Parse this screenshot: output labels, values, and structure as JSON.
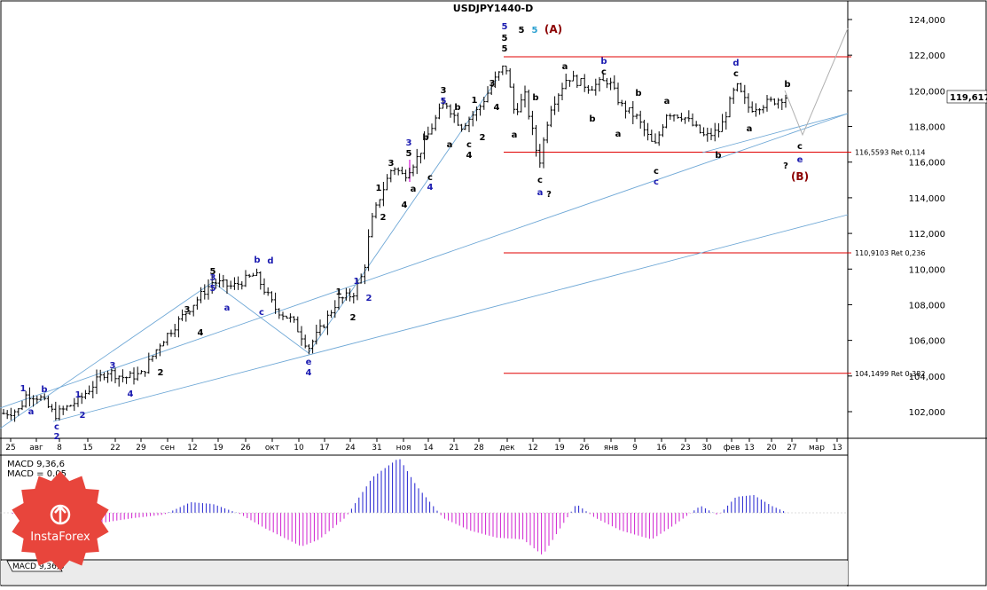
{
  "chart_data": {
    "type": "candlestick",
    "title": "USDJPY1440-D",
    "price_label": "119,617",
    "y_ticks": [
      "102,000",
      "104,000",
      "106,000",
      "108,000",
      "110,000",
      "112,000",
      "114,000",
      "116,000",
      "118,000",
      "120,000",
      "122,000",
      "124,000"
    ],
    "ylim": [
      100.6,
      124.2
    ],
    "x_ticks": [
      "25",
      "авг",
      "8",
      "15",
      "22",
      "29",
      "сен",
      "12",
      "19",
      "26",
      "окт",
      "10",
      "17",
      "24",
      "31",
      "ноя",
      "14",
      "21",
      "28",
      "дек",
      "12",
      "19",
      "26",
      "янв",
      "9",
      "16",
      "23",
      "30",
      "фев",
      "13",
      "20",
      "27",
      "мар",
      "13"
    ],
    "retracement_levels": [
      {
        "label": "116,5593 Ret 0,114",
        "value": 116.5593
      },
      {
        "label": "110,9103 Ret 0,236",
        "value": 110.9103
      },
      {
        "label": "104,1499 Ret 0,382",
        "value": 104.1499
      }
    ],
    "wave_labels": {
      "corrective_marker": "(A)",
      "projected_marker": "(B)",
      "question": "?"
    },
    "indicator": {
      "name": "MACD 9,36,6",
      "value_line": "MACD = 0.05",
      "tab_label": "MACD 9,36,6"
    },
    "watermark": "InstaForex",
    "grid": false
  },
  "colors": {
    "candle": "#000000",
    "retracement": "#e00000",
    "channel": "#6fa8d6",
    "wave_blue": "#1a1ab0",
    "wave_black": "#000000",
    "wave_red": "#8b0000",
    "wave_cyan": "#2aa0d0",
    "macd_positive": "#2020d0",
    "macd_negative": "#d020d0",
    "watermark_red": "#e8453c"
  }
}
